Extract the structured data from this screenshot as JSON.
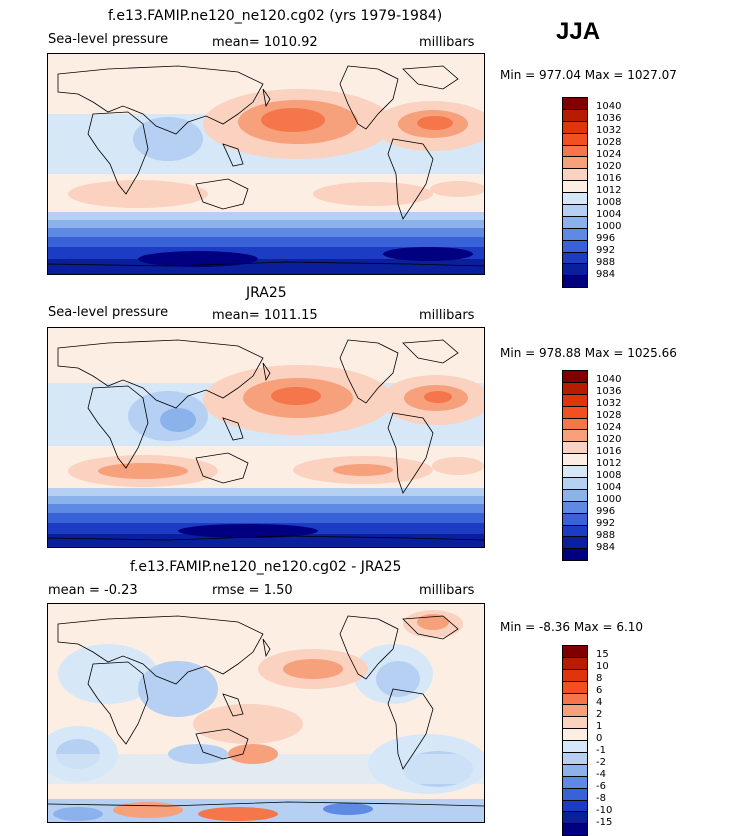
{
  "season": "JJA",
  "panels": [
    {
      "title": "f.e13.FAMIP.ne120_ne120.cg02 (yrs 1979-1984)",
      "left_label": "Sea-level pressure",
      "center_label": "mean= 1010.92",
      "units": "millibars",
      "minmax": "Min = 977.04 Max = 1027.07",
      "legend_labels": [
        "1040",
        "1036",
        "1032",
        "1028",
        "1024",
        "1020",
        "1016",
        "1012",
        "1008",
        "1004",
        "1000",
        "996",
        "992",
        "988",
        "984"
      ]
    },
    {
      "title": "JRA25",
      "left_label": "Sea-level pressure",
      "center_label": "mean= 1011.15",
      "units": "millibars",
      "minmax": "Min = 978.88 Max = 1025.66",
      "legend_labels": [
        "1040",
        "1036",
        "1032",
        "1028",
        "1024",
        "1020",
        "1016",
        "1012",
        "1008",
        "1004",
        "1000",
        "996",
        "992",
        "988",
        "984"
      ]
    },
    {
      "title": "f.e13.FAMIP.ne120_ne120.cg02 - JRA25",
      "left_label": "mean =  -0.23",
      "center_label": "rmse =   1.50",
      "units": "millibars",
      "minmax": "Min =  -8.36 Max =   6.10",
      "legend_labels": [
        "15",
        "10",
        "8",
        "6",
        "4",
        "2",
        "1",
        "0",
        "-1",
        "-2",
        "-4",
        "-6",
        "-8",
        "-10",
        "-15"
      ]
    }
  ],
  "colors": {
    "scale": [
      "#800000",
      "#b51c00",
      "#e0350a",
      "#f25020",
      "#f5764a",
      "#f7a07c",
      "#fad2bf",
      "#fdeee4",
      "#d6e8f8",
      "#b5d0f2",
      "#8cb2ec",
      "#5f8ae3",
      "#3a62d8",
      "#1c3cc4",
      "#0a1f9b",
      "#000080"
    ]
  }
}
